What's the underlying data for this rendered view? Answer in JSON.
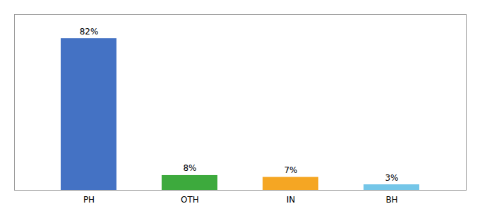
{
  "chart_data": {
    "type": "bar",
    "categories": [
      "PH",
      "OTH",
      "IN",
      "BH"
    ],
    "values": [
      82,
      8,
      7,
      3
    ],
    "value_labels": [
      "82%",
      "8%",
      "7%",
      "3%"
    ],
    "colors": [
      "#4472C4",
      "#3DAA3D",
      "#F5A623",
      "#74C6E8"
    ],
    "ylim": [
      0,
      95
    ],
    "data_labels": true,
    "tick_labels": "x"
  }
}
